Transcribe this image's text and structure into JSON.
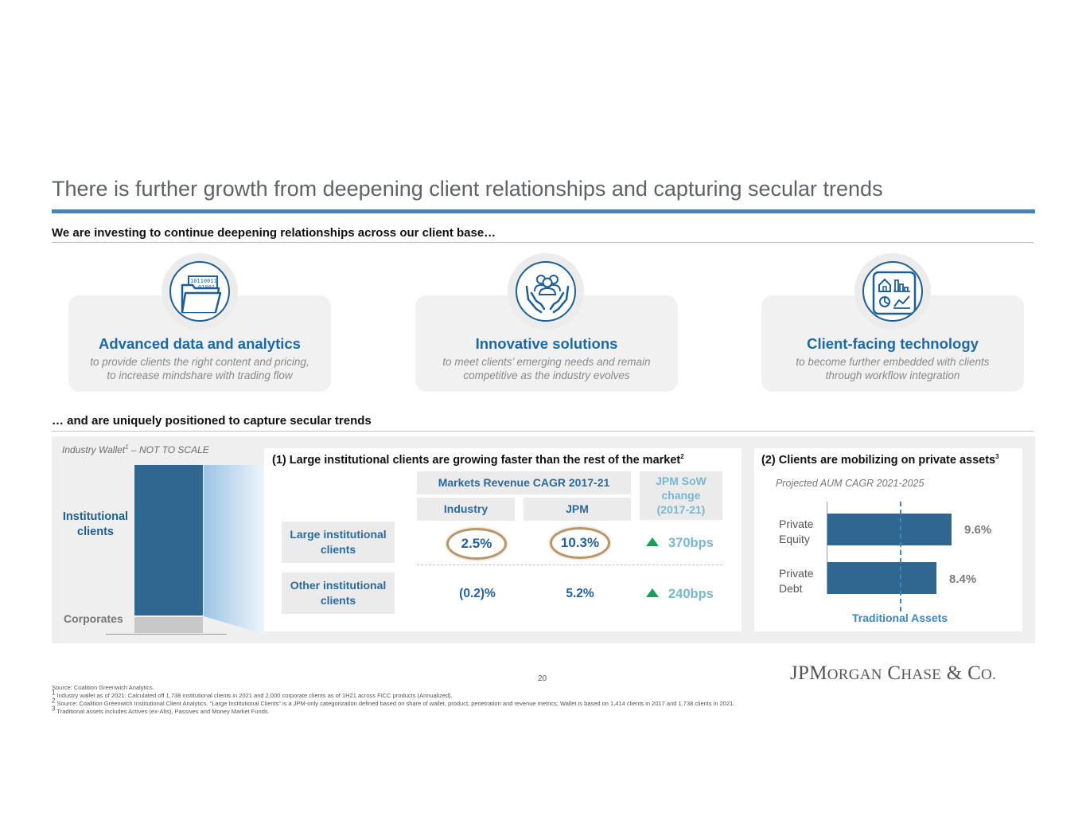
{
  "title": "There is further growth from deepening client relationships and capturing secular trends",
  "section1": {
    "heading": "We are investing to continue deepening relationships across our client base…"
  },
  "cards": [
    {
      "title": "Advanced data and analytics",
      "desc1": "to provide clients the right content and pricing,",
      "desc2": "to increase mindshare with trading flow",
      "icon": "data-folder-icon"
    },
    {
      "title": "Innovative solutions",
      "desc1": "to meet clients’ emerging needs and remain",
      "desc2": "competitive as the industry evolves",
      "icon": "hands-people-icon"
    },
    {
      "title": "Client-facing technology",
      "desc1": "to become further embedded with clients",
      "desc2": "through workflow integration",
      "icon": "dashboard-icon"
    }
  ],
  "icon_texts": {
    "binary1": "10110011",
    "binary2": "01001"
  },
  "section2": {
    "heading": "… and are uniquely positioned to capture secular trends"
  },
  "wallet": {
    "label_main": "Industry Wallet",
    "label_sup": "1",
    "label_rest": " – NOT TO SCALE",
    "institutional1": "Institutional",
    "institutional2": "clients",
    "corporates": "Corporates"
  },
  "table": {
    "title": "(1) Large institutional clients are growing faster than the rest of the market",
    "title_sup": "2",
    "header_group": "Markets Revenue CAGR 2017-21",
    "col_industry": "Industry",
    "col_jpm": "JPM",
    "sow1": "JPM SoW",
    "sow2": "change",
    "sow3": "(2017-21)",
    "rows": [
      {
        "label1": "Large institutional",
        "label2": "clients",
        "industry": "2.5%",
        "jpm": "10.3%",
        "sow": "370bps"
      },
      {
        "label1": "Other institutional",
        "label2": "clients",
        "industry": "(0.2)%",
        "jpm": "5.2%",
        "sow": "240bps"
      }
    ]
  },
  "private_assets": {
    "title": "(2) Clients are mobilizing on private assets",
    "title_sup": "3",
    "subtitle": "Projected AUM CAGR 2021-2025",
    "bars": [
      {
        "label1": "Private",
        "label2": "Equity",
        "value": 9.6,
        "value_label": "9.6%"
      },
      {
        "label1": "Private",
        "label2": "Debt",
        "value": 8.4,
        "value_label": "8.4%"
      }
    ],
    "reference_label": "Traditional Assets"
  },
  "page_number": "20",
  "footnotes": {
    "source": "Source: Coalition Greenwich Analytics.",
    "f1_sup": "1",
    "f1": " Industry wallet as of 2021: Calculated off 1,738 institutional clients in 2021 and 2,000 corporate clients as of 1H21 across FICC products (Annualized).",
    "f2_sup": "2",
    "f2": " Source: Coalition Greenwich Institutional Client Analytics. “Large Institutional Clients” is a JPM-only categorization defined based on share of wallet, product, penetration and revenue metrics; Wallet is based on 1,414 clients in 2017 and 1,738 clients in 2021.",
    "f3_sup": "3",
    "f3": " Traditional assets includes Actives (ex-Alts), Passives and Money Market Funds."
  },
  "logo": {
    "jp": "JP",
    "m": "M",
    "organ": "ORGAN",
    "c": "C",
    "hase": "HASE",
    "amp": " & ",
    "co": "C",
    "o": "O."
  },
  "colors": {
    "accent": "#3f86c0",
    "bar": "#2f6791",
    "title_blue": "#1a6aa6",
    "green": "#18a05a"
  }
}
